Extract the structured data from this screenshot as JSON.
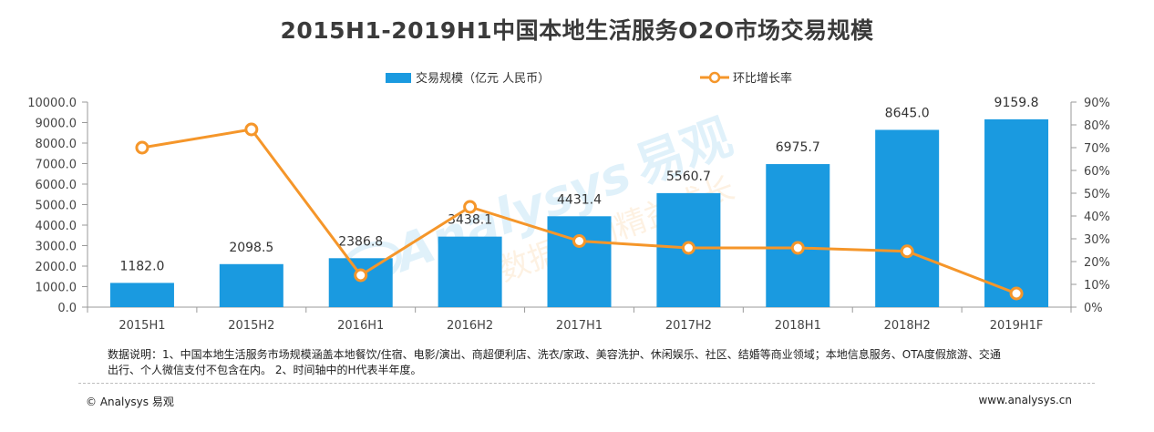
{
  "chart_data": {
    "type": "bar",
    "title": "2015H1-2019H1中国本地生活服务O2O市场交易规模",
    "categories": [
      "2015H1",
      "2015H2",
      "2016H1",
      "2016H2",
      "2017H1",
      "2017H2",
      "2018H1",
      "2018H2",
      "2019H1F"
    ],
    "series": [
      {
        "name": "交易规模（亿元 人民币）",
        "type": "bar",
        "axis": "left",
        "color": "#1a9ae0",
        "values": [
          1182.0,
          2098.5,
          2386.8,
          3438.1,
          4431.4,
          5560.7,
          6975.7,
          8645.0,
          9159.8
        ],
        "labels": [
          "1182.0",
          "2098.5",
          "2386.8",
          "3438.1",
          "4431.4",
          "5560.7",
          "6975.7",
          "8645.0",
          "9159.8"
        ]
      },
      {
        "name": "环比增长率",
        "type": "line",
        "axis": "right",
        "color": "#f5962a",
        "values": [
          70,
          78,
          14,
          44,
          29,
          26,
          26,
          24.5,
          6
        ]
      }
    ],
    "y_left": {
      "min": 0,
      "max": 10000,
      "ticks": [
        "0.0",
        "1000.0",
        "2000.0",
        "3000.0",
        "4000.0",
        "5000.0",
        "6000.0",
        "7000.0",
        "8000.0",
        "9000.0",
        "10000.0"
      ]
    },
    "y_right": {
      "min": 0,
      "max": 90,
      "ticks": [
        "0%",
        "10%",
        "20%",
        "30%",
        "40%",
        "50%",
        "60%",
        "70%",
        "80%",
        "90%"
      ]
    },
    "legend_position": "top-center",
    "grid": false
  },
  "watermark": {
    "brand": "Analysys",
    "cn": "易观",
    "cn_sub": "数据驱动精益成长"
  },
  "footer": {
    "note_line1": "数据说明：1、中国本地生活服务市场规模涵盖本地餐饮/住宿、电影/演出、商超便利店、洗衣/家政、美容洗护、休闲娱乐、社区、结婚等商业领域；本地信息服务、OTA度假旅游、交通",
    "note_line2": "出行、个人微信支付不包含在内。 2、时间轴中的H代表半年度。",
    "copyright": "© Analysys 易观",
    "website": "www.analysys.cn"
  }
}
